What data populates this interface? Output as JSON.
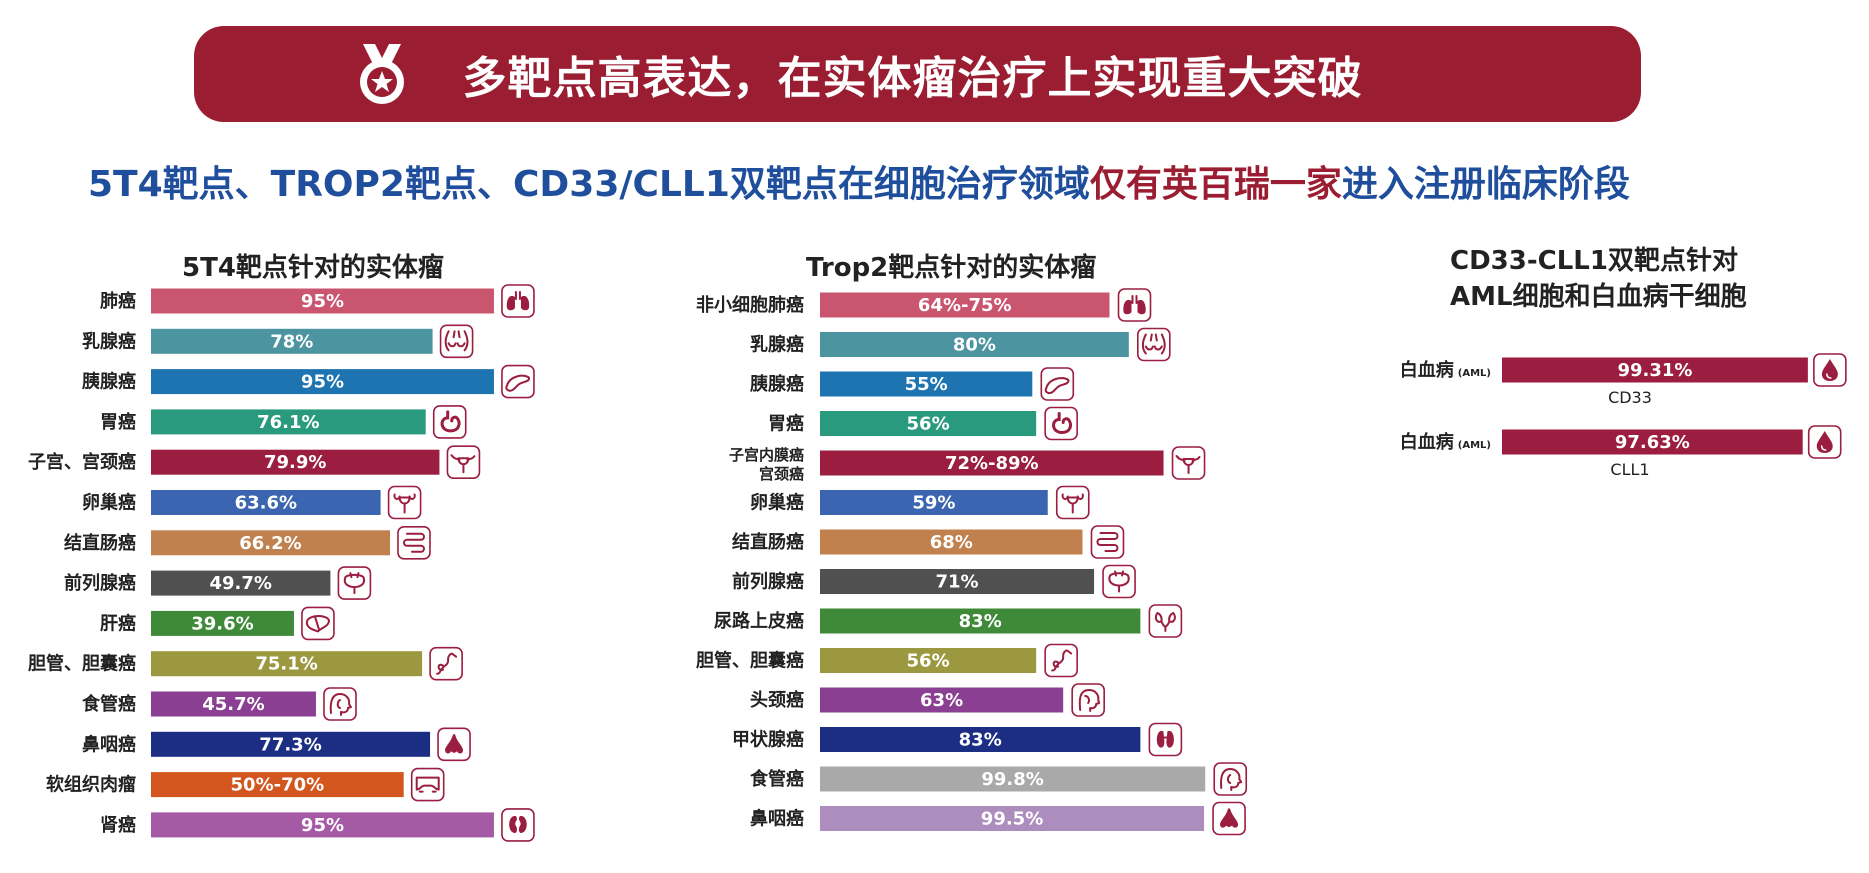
{
  "header": {
    "title": "多靶点高表达，在实体瘤治疗上实现重大突破",
    "subtitle_prefix": "5T4靶点、TROP2靶点、CD33/CLL1双靶点在细胞治疗领域",
    "subtitle_highlight": "仅有英百瑞一家",
    "subtitle_suffix": "进入注册临床阶段",
    "banner_color": "#9b1d32",
    "subtitle_color": "#1f4e9c"
  },
  "chart_data": [
    {
      "type": "bar",
      "title": "5T4靶点针对的实体瘤",
      "xlim": [
        0,
        100
      ],
      "categories": [
        "肺癌",
        "乳腺癌",
        "胰腺癌",
        "胃癌",
        "子宫、宫颈癌",
        "卵巢癌",
        "结直肠癌",
        "前列腺癌",
        "肝癌",
        "胆管、胆囊癌",
        "食管癌",
        "鼻咽癌",
        "软组织肉瘤",
        "肾癌"
      ],
      "values": [
        95,
        78,
        95,
        76.1,
        79.9,
        63.6,
        66.2,
        49.7,
        39.6,
        75.1,
        45.7,
        77.3,
        70,
        95
      ],
      "value_labels": [
        "95%",
        "78%",
        "95%",
        "76.1%",
        "79.9%",
        "63.6%",
        "66.2%",
        "49.7%",
        "39.6%",
        "75.1%",
        "45.7%",
        "77.3%",
        "50%-70%",
        "95%"
      ],
      "colors": [
        "#c9556f",
        "#4b94a0",
        "#1e74b1",
        "#2a9a7e",
        "#9b1d40",
        "#3b65b0",
        "#c0814e",
        "#505050",
        "#3f8a38",
        "#9c9840",
        "#8a3f93",
        "#1c2e83",
        "#d2561d",
        "#a55aa5"
      ],
      "icons": [
        "lungs-icon",
        "breast-icon",
        "pancreas-icon",
        "stomach-icon",
        "uterus-icon",
        "ovary-icon",
        "colon-icon",
        "prostate-icon",
        "liver-icon",
        "bile-duct-icon",
        "esophagus-icon",
        "nasopharynx-icon",
        "soft-tissue-icon",
        "kidney-icon"
      ]
    },
    {
      "type": "bar",
      "title": "Trop2靶点针对的实体瘤",
      "xlim": [
        0,
        100
      ],
      "categories": [
        "非小细胞肺癌",
        "乳腺癌",
        "胰腺癌",
        "胃癌",
        "子宫内膜癌\n宫颈癌",
        "卵巢癌",
        "结直肠癌",
        "前列腺癌",
        "尿路上皮癌",
        "胆管、胆囊癌",
        "头颈癌",
        "甲状腺癌",
        "食管癌",
        "鼻咽癌"
      ],
      "values": [
        75,
        80,
        55,
        56,
        89,
        59,
        68,
        71,
        83,
        56,
        63,
        83,
        99.8,
        99.5
      ],
      "value_labels": [
        "64%-75%",
        "80%",
        "55%",
        "56%",
        "72%-89%",
        "59%",
        "68%",
        "71%",
        "83%",
        "56%",
        "63%",
        "83%",
        "99.8%",
        "99.5%"
      ],
      "colors": [
        "#c9556f",
        "#4b94a0",
        "#1e74b1",
        "#2a9a7e",
        "#9b1d40",
        "#3b65b0",
        "#c0814e",
        "#505050",
        "#3f8a38",
        "#9c9840",
        "#8a3f93",
        "#1c2e83",
        "#a9a9a9",
        "#ad8dbd"
      ],
      "icons": [
        "lungs-icon",
        "breast-icon",
        "pancreas-icon",
        "stomach-icon",
        "uterus-icon",
        "ovary-icon",
        "colon-icon",
        "prostate-icon",
        "urinary-icon",
        "bile-duct-icon",
        "head-neck-icon",
        "thyroid-icon",
        "esophagus-icon",
        "nasopharynx-icon"
      ]
    },
    {
      "type": "bar",
      "title": "CD33-CLL1双靶点针对\nAML细胞和白血病干细胞",
      "xlim": [
        0,
        100
      ],
      "categories": [
        "白血病",
        "白血病"
      ],
      "category_suffix": "(AML)",
      "values": [
        99.31,
        97.63
      ],
      "value_labels": [
        "99.31%",
        "97.63%"
      ],
      "sublabels": [
        "CD33",
        "CLL1"
      ],
      "colors": [
        "#9b1d40",
        "#9b1d40"
      ],
      "icons": [
        "blood-drop-icon",
        "blood-drop-icon"
      ]
    }
  ]
}
